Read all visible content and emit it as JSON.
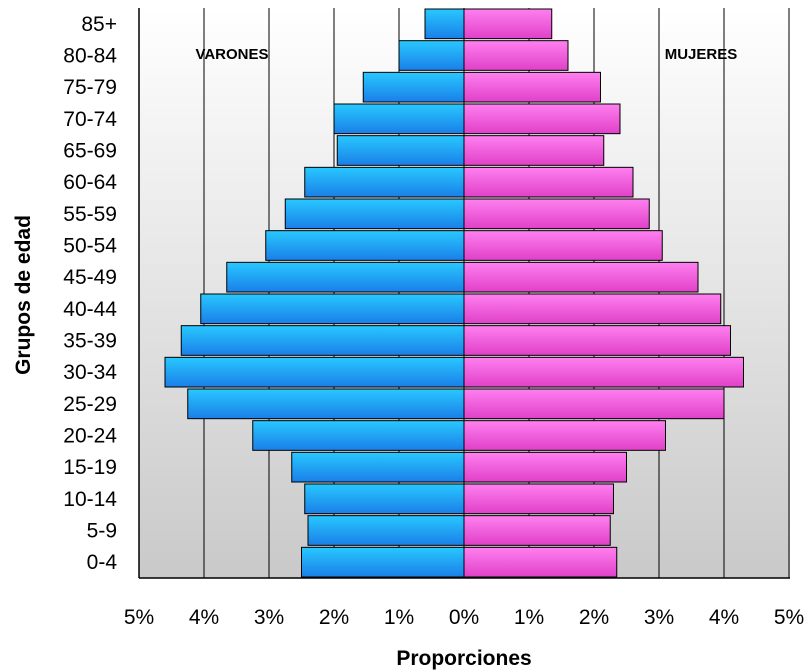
{
  "chart_data": {
    "type": "bar",
    "orientation": "horizontal",
    "subtype": "population-pyramid",
    "xlabel": "Proporciones",
    "ylabel": "Grupos de edad",
    "xlim": [
      -5,
      5
    ],
    "x_ticks": [
      "5%",
      "4%",
      "3%",
      "2%",
      "1%",
      "0%",
      "1%",
      "2%",
      "3%",
      "4%",
      "5%"
    ],
    "categories": [
      "85+",
      "80-84",
      "75-79",
      "70-74",
      "65-69",
      "60-64",
      "55-59",
      "50-54",
      "45-49",
      "40-44",
      "35-39",
      "30-34",
      "25-29",
      "20-24",
      "15-19",
      "10-14",
      "5-9",
      "0-4"
    ],
    "series": [
      {
        "name": "VARONES",
        "side": "left",
        "color": "#1ea8f0",
        "values": [
          0.6,
          1.0,
          1.55,
          2.0,
          1.95,
          2.45,
          2.75,
          3.05,
          3.65,
          4.05,
          4.35,
          4.6,
          4.25,
          3.25,
          2.65,
          2.45,
          2.4,
          2.5
        ]
      },
      {
        "name": "MUJERES",
        "side": "right",
        "color": "#f060d8",
        "values": [
          1.35,
          1.6,
          2.1,
          2.4,
          2.15,
          2.6,
          2.85,
          3.05,
          3.6,
          3.95,
          4.1,
          4.3,
          4.0,
          3.1,
          2.5,
          2.3,
          2.25,
          2.35
        ]
      }
    ],
    "grid": "vertical",
    "background_gradient": [
      "#ffffff",
      "#c8c8c8"
    ]
  }
}
